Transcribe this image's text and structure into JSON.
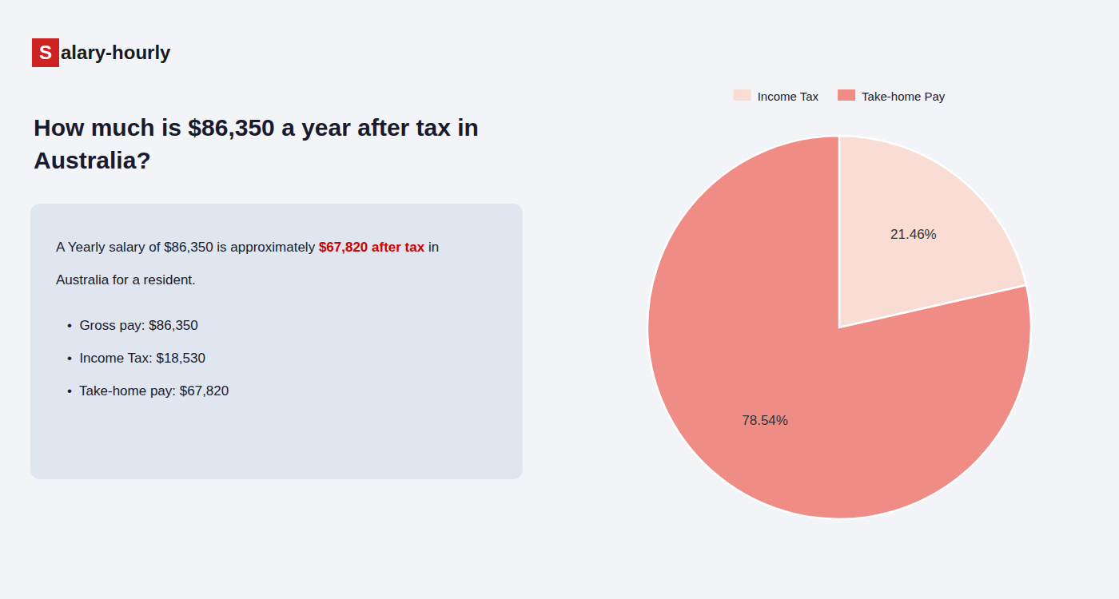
{
  "chart_data": {
    "type": "pie",
    "title": "How much is $86,350 a year after tax in\nAustralia?",
    "categories": [
      "Income Tax",
      "Take-home Pay"
    ],
    "values": [
      21.46,
      78.54
    ],
    "value_labels": [
      "21.46%",
      "78.54%"
    ],
    "colors": [
      "#f9ddd4",
      "#f08c86"
    ],
    "data_labels": true,
    "legend": "top",
    "annotations": [
      {
        "text": "S",
        "color": "#cc2222"
      },
      {
        "text": "alary-hourly"
      },
      {
        "text": "A Yearly salary of $86,350 is approximately "
      },
      {
        "text": "$67,820 after tax",
        "color": "#cc0000"
      },
      {
        "text": " in"
      },
      {
        "text": "Australia for a resident."
      },
      {
        "text": "•  Gross pay: $86,350"
      },
      {
        "text": "•  Income Tax: $18,530"
      },
      {
        "text": "•  Take-home pay: $67,820"
      }
    ]
  }
}
